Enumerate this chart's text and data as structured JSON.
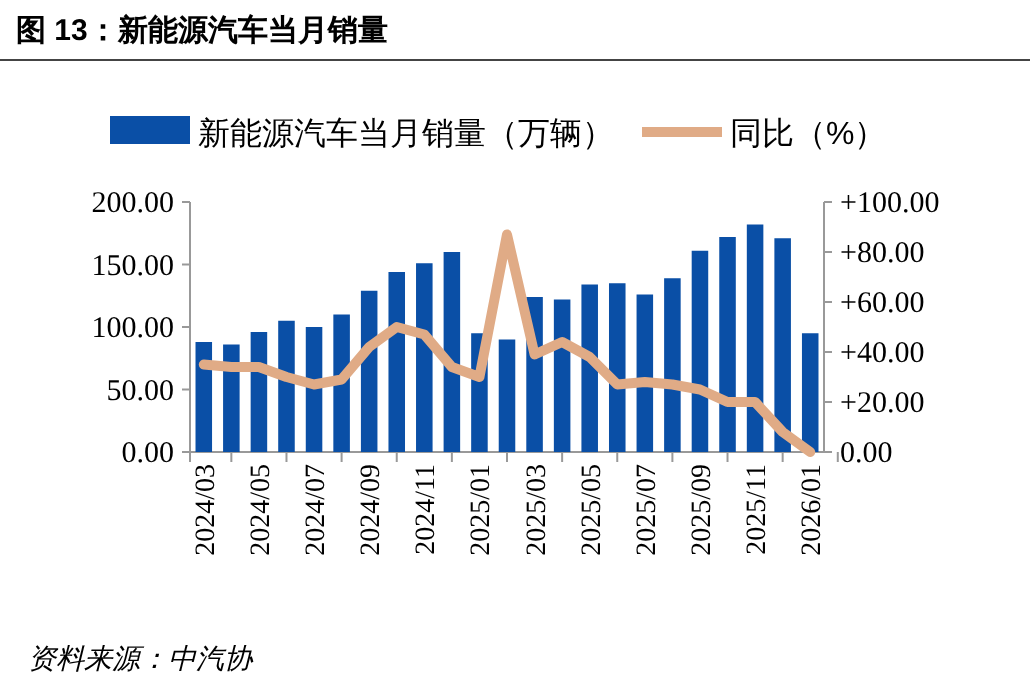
{
  "chart_data": {
    "type": "bar",
    "title": "图 13：新能源汽车当月销量",
    "categories": [
      "2024/03",
      null,
      "2024/05",
      null,
      "2024/07",
      null,
      "2024/09",
      null,
      "2024/11",
      null,
      "2025/01",
      null,
      "2025/03",
      null,
      "2025/05",
      null,
      "2025/07",
      null,
      "2025/09",
      null,
      "2025/11",
      null,
      "2026/01"
    ],
    "series": [
      {
        "name": "新能源汽车当月销量（万辆）",
        "color": "#0a4fa6",
        "values": [
          88,
          86,
          96,
          105,
          100,
          110,
          129,
          144,
          151,
          160,
          95,
          90,
          124,
          122,
          134,
          135,
          126,
          139,
          161,
          172,
          182,
          171,
          95
        ]
      },
      {
        "name": "同比（%）",
        "type": "line",
        "axis": "y2",
        "color": "#e0ab86",
        "values": [
          35,
          34,
          34,
          30,
          27,
          29,
          42,
          50,
          47,
          34,
          30,
          87,
          39,
          44,
          38,
          27,
          28,
          27,
          25,
          20,
          20,
          8,
          0
        ]
      }
    ],
    "ylim": [
      0,
      200
    ],
    "yticks": [
      {
        "value": 0,
        "label": "0.00"
      },
      {
        "value": 50,
        "label": "50.00"
      },
      {
        "value": 100,
        "label": "100.00"
      },
      {
        "value": 150,
        "label": "150.00"
      },
      {
        "value": 200,
        "label": "200.00"
      }
    ],
    "y2lim": [
      0,
      100
    ],
    "y2ticks": [
      {
        "value": 0,
        "label": "0.00"
      },
      {
        "value": 20,
        "label": "+20.00"
      },
      {
        "value": 40,
        "label": "+40.00"
      },
      {
        "value": 60,
        "label": "+60.00"
      },
      {
        "value": 80,
        "label": "+80.00"
      },
      {
        "value": 100,
        "label": "+100.00"
      }
    ],
    "legend": "top",
    "grid": false,
    "annotations": [
      "资料来源：中汽协"
    ]
  }
}
